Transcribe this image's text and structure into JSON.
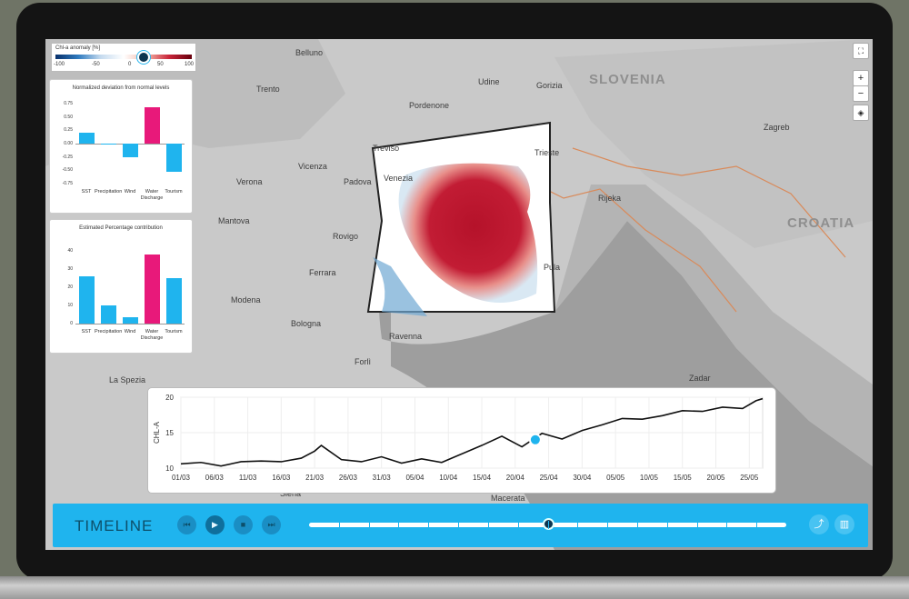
{
  "map": {
    "places": [
      "Belluno",
      "Udine",
      "Gorizia",
      "Trento",
      "Pordenone",
      "Treviso",
      "Trieste",
      "Vicenza",
      "Venezia",
      "Padova",
      "Verona",
      "Rovigo",
      "Mantova",
      "Ferrara",
      "Modena",
      "Bologna",
      "Ravenna",
      "Forlì",
      "La Spezia",
      "Rijeka",
      "Zagreb",
      "Pula",
      "Zadar",
      "Siena",
      "Macerata"
    ],
    "countries": [
      "SLOVENIA",
      "CROATIA"
    ]
  },
  "legend": {
    "title": "Chl-a anomaly [%]",
    "ticks": [
      "-100",
      "-50",
      "0",
      "50",
      "100"
    ]
  },
  "panel1": {
    "title": "Normalized deviation from normal levels",
    "yticks": [
      "0.75",
      "0.50",
      "0.25",
      "0.00",
      "-0.25",
      "-0.50",
      "-0.75"
    ],
    "categories": [
      "SST",
      "Precipitation",
      "Wind",
      "Water Discharge",
      "Tourism"
    ],
    "values": [
      0.2,
      0.0,
      -0.25,
      0.68,
      -0.52
    ],
    "colors": [
      "#1fb4ee",
      "#1fb4ee",
      "#1fb4ee",
      "#e8197a",
      "#1fb4ee"
    ]
  },
  "panel2": {
    "title": "Estimated Percentage contribution",
    "yticks": [
      "40",
      "30",
      "20",
      "10",
      "0"
    ],
    "categories": [
      "SST",
      "Precipitation",
      "Wind",
      "Water Discharge",
      "Tourism"
    ],
    "values": [
      26,
      10,
      3.5,
      38,
      25
    ],
    "colors": [
      "#1fb4ee",
      "#1fb4ee",
      "#1fb4ee",
      "#e8197a",
      "#1fb4ee"
    ]
  },
  "controls": {
    "zoom_in": "+",
    "zoom_out": "−"
  },
  "chart_data": {
    "type": "line",
    "ylabel": "CHL-A",
    "ylim": [
      10,
      20
    ],
    "yticks": [
      "20",
      "15",
      "10"
    ],
    "xticks": [
      "01/03",
      "06/03",
      "11/03",
      "16/03",
      "21/03",
      "26/03",
      "31/03",
      "05/04",
      "10/04",
      "15/04",
      "20/04",
      "25/04",
      "30/04",
      "05/05",
      "10/05",
      "15/05",
      "20/05",
      "25/05"
    ],
    "x_day": [
      0,
      3,
      6,
      9,
      12,
      15,
      18,
      20,
      21,
      24,
      27,
      30,
      33,
      36,
      39,
      42,
      45,
      48,
      51,
      54,
      57,
      60,
      63,
      66,
      69,
      72,
      75,
      78,
      81,
      84,
      86,
      87
    ],
    "y": [
      10.6,
      10.8,
      10.3,
      10.9,
      11.0,
      10.9,
      11.4,
      12.4,
      13.2,
      11.2,
      10.9,
      11.6,
      10.7,
      11.3,
      10.8,
      12.0,
      13.2,
      14.5,
      13.0,
      14.9,
      14.1,
      15.3,
      16.1,
      17.0,
      16.9,
      17.4,
      18.1,
      18.0,
      18.6,
      18.4,
      19.5,
      19.8
    ],
    "highlight": {
      "x_day": 53,
      "y": 14.0
    }
  },
  "timeline": {
    "title": "TIMELINE",
    "position": 0.5,
    "tick_count": 16
  }
}
